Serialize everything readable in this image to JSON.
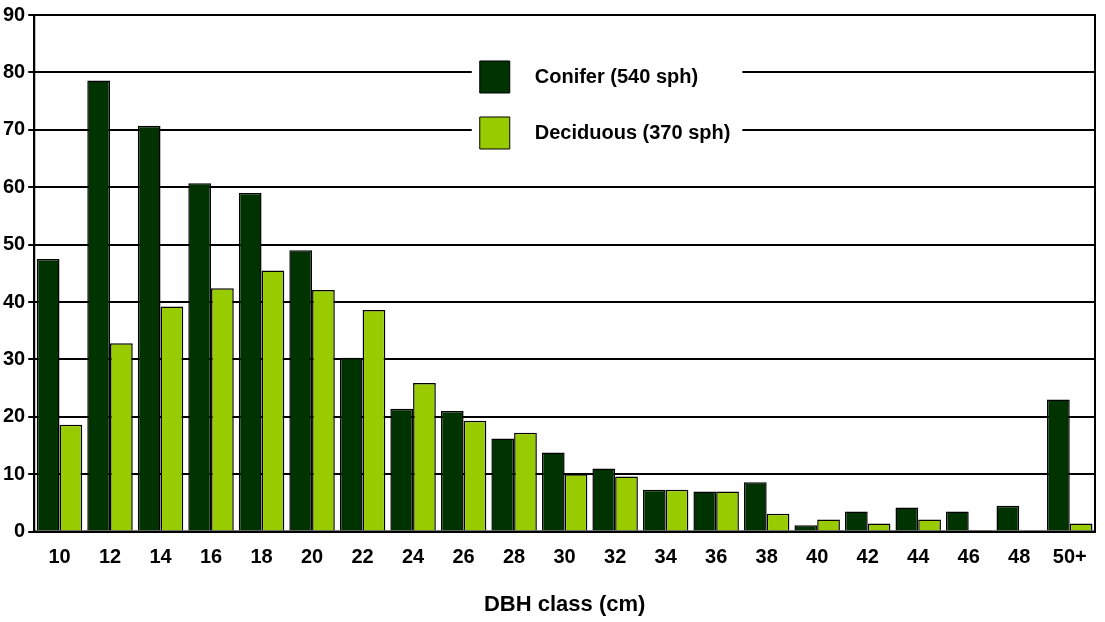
{
  "chart_data": {
    "type": "bar",
    "xlabel": "DBH class (cm)",
    "categories": [
      "10",
      "12",
      "14",
      "16",
      "18",
      "20",
      "22",
      "24",
      "26",
      "28",
      "30",
      "32",
      "34",
      "36",
      "38",
      "40",
      "42",
      "44",
      "46",
      "48",
      "50+"
    ],
    "series": [
      {
        "name": "Conifer (540 sph)",
        "color": "#003300",
        "values": [
          47.5,
          78.6,
          70.7,
          60.7,
          59,
          49,
          30.3,
          21.4,
          21,
          16.2,
          13.8,
          11,
          7.3,
          7,
          8.6,
          1.1,
          3.5,
          4.2,
          3.5,
          4.5,
          23
        ]
      },
      {
        "name": "Deciduous (370 sph)",
        "color": "#99cc00",
        "values": [
          18.6,
          32.8,
          39.2,
          42.4,
          45.5,
          42.1,
          38.6,
          25.9,
          19.3,
          17.2,
          10,
          9.6,
          7.3,
          7,
          3.1,
          2.1,
          1.4,
          2.1,
          0.3,
          0,
          1.4
        ]
      }
    ],
    "ylim": [
      0,
      90
    ],
    "yticks": [
      0,
      10,
      20,
      30,
      40,
      50,
      60,
      70,
      80,
      90
    ],
    "grid": "y",
    "legend": "top"
  }
}
